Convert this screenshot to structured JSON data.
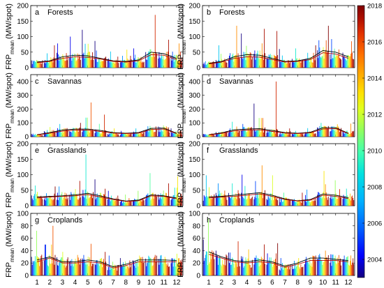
{
  "chart_data": {
    "type": "bar",
    "layout": "4x2 panel grid with colorbar on the right",
    "x_ticks": [
      "1",
      "2",
      "3",
      "4",
      "5",
      "6",
      "7",
      "8",
      "9",
      "10",
      "11",
      "12"
    ],
    "ylabel_main": "FRP",
    "ylabel_sub": "mean",
    "ylabel_unit": "(MW/spot)",
    "colorbar": {
      "ticks": [
        "2018",
        "2016",
        "2014",
        "2012",
        "2010",
        "2008",
        "2006",
        "2004"
      ],
      "range": [
        2003,
        2018
      ],
      "colors": [
        "#140080",
        "#0000ff",
        "#0060ff",
        "#00b0ff",
        "#00e0e0",
        "#40ffb0",
        "#90ff60",
        "#e0ff20",
        "#ffe000",
        "#ffb000",
        "#ff7000",
        "#e03000",
        "#b01000",
        "#800000"
      ]
    },
    "panels": [
      {
        "letter": "a",
        "name": "Forests",
        "ylim": [
          0,
          200
        ],
        "yticks": [
          0,
          50,
          100,
          150,
          200
        ],
        "peaks": [
          20,
          72,
          78,
          100,
          122,
          86,
          52,
          58,
          62,
          170,
          90,
          78
        ],
        "typical": [
          18,
          25,
          35,
          38,
          40,
          30,
          22,
          22,
          25,
          45,
          40,
          30
        ],
        "curve1": [
          18,
          22,
          35,
          40,
          38,
          30,
          22,
          20,
          25,
          50,
          45,
          30
        ],
        "curve2": [
          16,
          20,
          30,
          35,
          33,
          28,
          20,
          18,
          22,
          42,
          40,
          26
        ]
      },
      {
        "letter": "b",
        "name": "Forests",
        "ylim": [
          0,
          200
        ],
        "yticks": [
          0,
          50,
          100,
          150,
          200
        ],
        "peaks": [
          18,
          72,
          135,
          110,
          125,
          118,
          60,
          62,
          72,
          135,
          92,
          85
        ],
        "typical": [
          15,
          22,
          35,
          38,
          40,
          32,
          22,
          22,
          28,
          50,
          45,
          35
        ],
        "curve1": [
          14,
          20,
          35,
          42,
          40,
          30,
          20,
          22,
          30,
          55,
          50,
          35
        ],
        "curve2": [
          12,
          18,
          30,
          35,
          34,
          26,
          18,
          20,
          26,
          48,
          44,
          30
        ]
      },
      {
        "letter": "c",
        "name": "Savannas",
        "ylim": [
          0,
          450
        ],
        "yticks": [
          0,
          100,
          200,
          300,
          400
        ],
        "peaks": [
          22,
          70,
          92,
          100,
          248,
          160,
          60,
          42,
          60,
          78,
          82,
          60
        ],
        "typical": [
          15,
          30,
          45,
          50,
          48,
          38,
          25,
          22,
          28,
          55,
          55,
          30
        ],
        "curve1": [
          14,
          30,
          48,
          55,
          55,
          45,
          30,
          25,
          30,
          60,
          62,
          25
        ],
        "curve2": [
          12,
          25,
          40,
          48,
          48,
          38,
          26,
          22,
          26,
          52,
          55,
          22
        ]
      },
      {
        "letter": "d",
        "name": "Savannas",
        "ylim": [
          0,
          450
        ],
        "yticks": [
          0,
          100,
          200,
          300,
          400
        ],
        "peaks": [
          25,
          40,
          108,
          92,
          240,
          400,
          60,
          42,
          62,
          100,
          90,
          95
        ],
        "typical": [
          15,
          28,
          45,
          52,
          50,
          40,
          26,
          22,
          30,
          58,
          60,
          32
        ],
        "curve1": [
          14,
          28,
          50,
          55,
          58,
          45,
          30,
          25,
          32,
          65,
          65,
          25
        ],
        "curve2": [
          12,
          24,
          42,
          48,
          50,
          38,
          26,
          22,
          28,
          56,
          58,
          22
        ]
      },
      {
        "letter": "e",
        "name": "Grasslands",
        "ylim": [
          0,
          200
        ],
        "yticks": [
          0,
          50,
          100,
          150,
          200
        ],
        "peaks": [
          65,
          62,
          62,
          80,
          165,
          85,
          48,
          36,
          48,
          105,
          72,
          95
        ],
        "typical": [
          28,
          30,
          32,
          32,
          38,
          30,
          20,
          15,
          18,
          32,
          30,
          28
        ],
        "curve1": [
          28,
          30,
          32,
          35,
          40,
          32,
          22,
          15,
          18,
          35,
          32,
          25
        ],
        "curve2": [
          25,
          28,
          30,
          32,
          36,
          28,
          20,
          14,
          16,
          32,
          30,
          22
        ]
      },
      {
        "letter": "f",
        "name": "Grasslands",
        "ylim": [
          0,
          200
        ],
        "yticks": [
          0,
          50,
          100,
          150,
          200
        ],
        "peaks": [
          98,
          72,
          72,
          100,
          130,
          98,
          42,
          42,
          52,
          112,
          82,
          55
        ],
        "typical": [
          28,
          30,
          32,
          34,
          38,
          30,
          20,
          16,
          20,
          34,
          30,
          26
        ],
        "curve1": [
          28,
          30,
          34,
          38,
          42,
          34,
          22,
          16,
          20,
          38,
          34,
          26
        ],
        "curve2": [
          25,
          28,
          30,
          34,
          38,
          30,
          20,
          15,
          18,
          34,
          30,
          23
        ]
      },
      {
        "letter": "g",
        "name": "Croplands",
        "ylim": [
          0,
          100
        ],
        "yticks": [
          0,
          20,
          40,
          60,
          80,
          100
        ],
        "peaks": [
          72,
          80,
          38,
          33,
          51,
          38,
          32,
          28,
          32,
          33,
          30,
          35
        ],
        "typical": [
          25,
          25,
          22,
          22,
          24,
          20,
          14,
          18,
          22,
          24,
          24,
          22
        ],
        "curve1": [
          25,
          30,
          22,
          22,
          25,
          22,
          14,
          18,
          25,
          25,
          25,
          24
        ],
        "curve2": [
          22,
          28,
          20,
          20,
          22,
          20,
          12,
          16,
          22,
          22,
          22,
          22
        ]
      },
      {
        "letter": "h",
        "name": "Croplands",
        "ylim": [
          0,
          100
        ],
        "yticks": [
          0,
          20,
          40,
          60,
          80,
          100
        ],
        "peaks": [
          92,
          40,
          55,
          42,
          50,
          52,
          28,
          28,
          32,
          40,
          32,
          32
        ],
        "typical": [
          30,
          25,
          22,
          22,
          24,
          22,
          14,
          18,
          24,
          26,
          26,
          24
        ],
        "curve1": [
          38,
          30,
          24,
          22,
          25,
          22,
          15,
          20,
          28,
          28,
          26,
          24
        ],
        "curve2": [
          34,
          28,
          22,
          20,
          22,
          20,
          13,
          18,
          24,
          24,
          24,
          22
        ]
      }
    ]
  }
}
